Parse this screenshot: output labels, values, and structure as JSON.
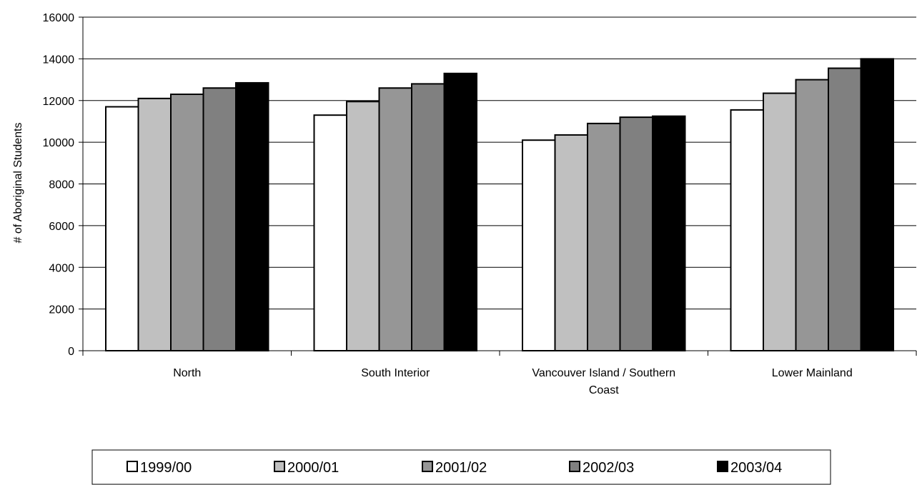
{
  "chart_data": {
    "type": "bar",
    "title": "",
    "xlabel": "",
    "ylabel": "# of Aboriginal Students",
    "ylim": [
      0,
      16000
    ],
    "yticks": [
      0,
      2000,
      4000,
      6000,
      8000,
      10000,
      12000,
      14000,
      16000
    ],
    "grid": true,
    "legend_position": "bottom",
    "categories": [
      [
        "North"
      ],
      [
        "South Interior"
      ],
      [
        "Vancouver Island / Southern",
        "Coast"
      ],
      [
        "Lower Mainland"
      ]
    ],
    "series": [
      {
        "name": "1999/00",
        "color": "#ffffff",
        "values": [
          11700,
          11300,
          10100,
          11550
        ]
      },
      {
        "name": "2000/01",
        "color": "#c0c0c0",
        "values": [
          12100,
          11950,
          10350,
          12350
        ]
      },
      {
        "name": "2001/02",
        "color": "#969696",
        "values": [
          12300,
          12600,
          10900,
          13000
        ]
      },
      {
        "name": "2002/03",
        "color": "#808080",
        "values": [
          12600,
          12800,
          11200,
          13550
        ]
      },
      {
        "name": "2003/04",
        "color": "#000000",
        "values": [
          12850,
          13300,
          11250,
          14000
        ]
      }
    ]
  }
}
